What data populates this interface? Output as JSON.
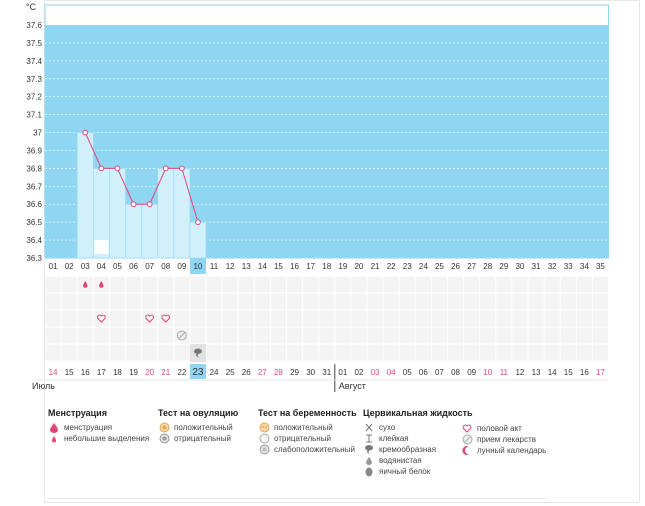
{
  "colors": {
    "plot_bg": "#8ed6f1",
    "bar_fill": "#d2f0fc",
    "bar_stroke": "#9ad8ef",
    "line": "#e0467c",
    "today": "#8ed6f1",
    "weekend": "#e0467c",
    "grid_cell": "#f4f4f4",
    "moon": "#e0467c"
  },
  "chart_data": {
    "type": "line",
    "ylabel": "°C",
    "y_ticks": [
      "37.6",
      "37.5",
      "37.4",
      "37.3",
      "37.2",
      "37.1",
      "37",
      "36.9",
      "36.8",
      "36.7",
      "36.6",
      "36.5",
      "36.4",
      "36.3"
    ],
    "ylim": [
      36.3,
      37.6
    ],
    "cycle_days": [
      "01",
      "02",
      "03",
      "04",
      "05",
      "06",
      "07",
      "08",
      "09",
      "10",
      "11",
      "12",
      "13",
      "14",
      "15",
      "16",
      "17",
      "18",
      "19",
      "20",
      "21",
      "22",
      "23",
      "24",
      "25",
      "26",
      "27",
      "28",
      "29",
      "30",
      "31",
      "32",
      "33",
      "34",
      "35"
    ],
    "dates": [
      "14",
      "15",
      "16",
      "17",
      "18",
      "19",
      "20",
      "21",
      "22",
      "23",
      "24",
      "25",
      "26",
      "27",
      "28",
      "29",
      "30",
      "31",
      "01",
      "02",
      "03",
      "04",
      "05",
      "06",
      "07",
      "08",
      "09",
      "10",
      "11",
      "12",
      "13",
      "14",
      "15",
      "16",
      "17"
    ],
    "weekend_dates": [
      0,
      6,
      7,
      13,
      14,
      20,
      21,
      27,
      28,
      34
    ],
    "today_index": 9,
    "months": [
      {
        "label": "Июль",
        "start_index": 0
      },
      {
        "label": "Август",
        "start_index": 18
      }
    ],
    "temperature": {
      "day_index": [
        2,
        3,
        4,
        5,
        6,
        7,
        8,
        9
      ],
      "values": [
        37.0,
        36.8,
        36.8,
        36.6,
        36.6,
        36.8,
        36.8,
        36.5
      ]
    },
    "markers": {
      "moon_day_index": 3,
      "menstruation_light_day_index": [
        2,
        3
      ],
      "intercourse_day_index": [
        3,
        6,
        7
      ],
      "medication_day_index": [
        8
      ],
      "cervical_creamy_day_index": [
        9
      ]
    }
  },
  "legend": {
    "menstruation": {
      "title": "Менструация",
      "items": [
        {
          "icon": "menstruation-drop-icon",
          "label": "менструация"
        },
        {
          "icon": "light-drop-icon",
          "label": "небольшие выделения"
        }
      ]
    },
    "ovulation": {
      "title": "Тест на овуляцию",
      "items": [
        {
          "icon": "ovulation-positive-icon",
          "label": "положительный"
        },
        {
          "icon": "ovulation-negative-icon",
          "label": "отрицательный"
        }
      ]
    },
    "pregnancy": {
      "title": "Тест на беременность",
      "items": [
        {
          "icon": "pregnancy-positive-icon",
          "label": "положительный"
        },
        {
          "icon": "pregnancy-negative-icon",
          "label": "отрицательный"
        },
        {
          "icon": "pregnancy-weak-icon",
          "label": "слабоположительный"
        }
      ]
    },
    "cervical": {
      "title": "Цервикальная жидкость",
      "items": [
        {
          "icon": "dry-icon",
          "label": "сухо"
        },
        {
          "icon": "sticky-icon",
          "label": "клейкая"
        },
        {
          "icon": "creamy-icon",
          "label": "кремообразная"
        },
        {
          "icon": "watery-icon",
          "label": "водянистая"
        },
        {
          "icon": "egg-white-icon",
          "label": "яичный белок"
        }
      ]
    },
    "other": {
      "items": [
        {
          "icon": "heart-icon",
          "label": "половой акт"
        },
        {
          "icon": "pill-icon",
          "label": "прием лекарств"
        },
        {
          "icon": "moon-icon",
          "label": "лунный календарь"
        }
      ]
    }
  }
}
